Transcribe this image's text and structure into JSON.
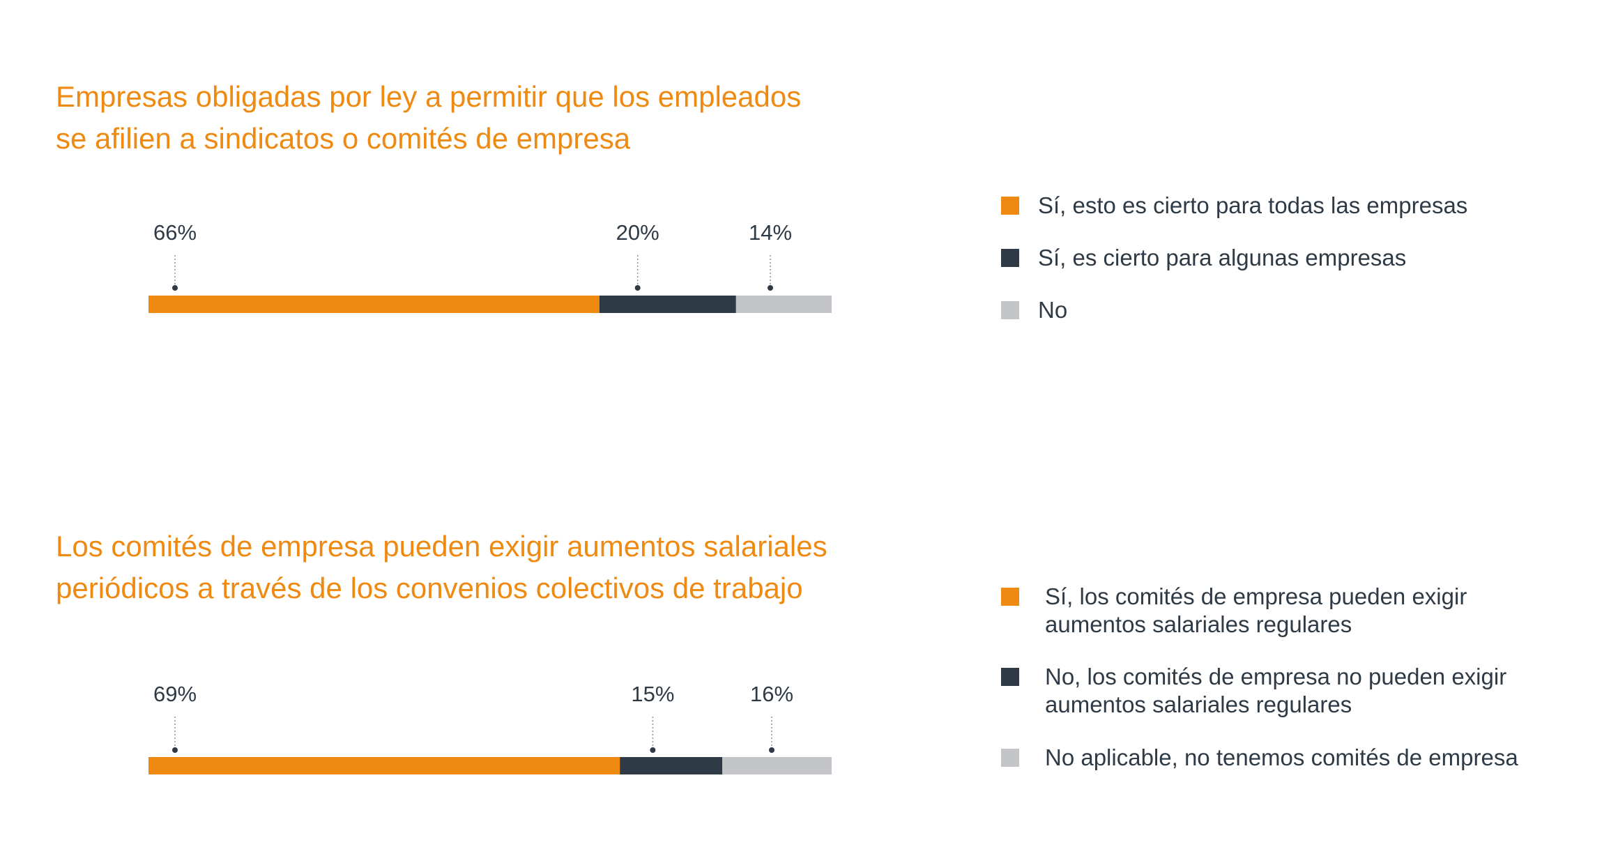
{
  "chart_data": [
    {
      "type": "bar",
      "orientation": "horizontal-stacked",
      "title_lines": [
        "Empresas obligadas por ley a permitir que los empleados",
        "se afilien a sindicatos o comités de empresa"
      ],
      "unit": "%",
      "xlim": [
        0,
        100
      ],
      "legend_position": "right",
      "series": [
        {
          "name": "Sí, esto es cierto para todas las empresas",
          "value": 66,
          "label": "66%",
          "color": "#ee8a12"
        },
        {
          "name": "Sí, es cierto para algunas empresas",
          "value": 20,
          "label": "20%",
          "color": "#2e3a45"
        },
        {
          "name": "No",
          "value": 14,
          "label": "14%",
          "color": "#c3c5c8"
        }
      ]
    },
    {
      "type": "bar",
      "orientation": "horizontal-stacked",
      "title_lines": [
        "Los comités de empresa pueden exigir aumentos salariales",
        "periódicos a través de los convenios colectivos de trabajo"
      ],
      "unit": "%",
      "xlim": [
        0,
        100
      ],
      "legend_position": "right",
      "series": [
        {
          "name": [
            "Sí, los comités de empresa pueden exigir",
            "aumentos salariales regulares"
          ],
          "value": 69,
          "label": "69%",
          "color": "#ee8a12"
        },
        {
          "name": [
            "No, los comités de empresa no pueden exigir",
            "aumentos salariales regulares"
          ],
          "value": 15,
          "label": "15%",
          "color": "#2e3a45"
        },
        {
          "name": "No aplicable, no tenemos comités de empresa",
          "value": 16,
          "label": "16%",
          "color": "#c3c5c8"
        }
      ]
    }
  ]
}
